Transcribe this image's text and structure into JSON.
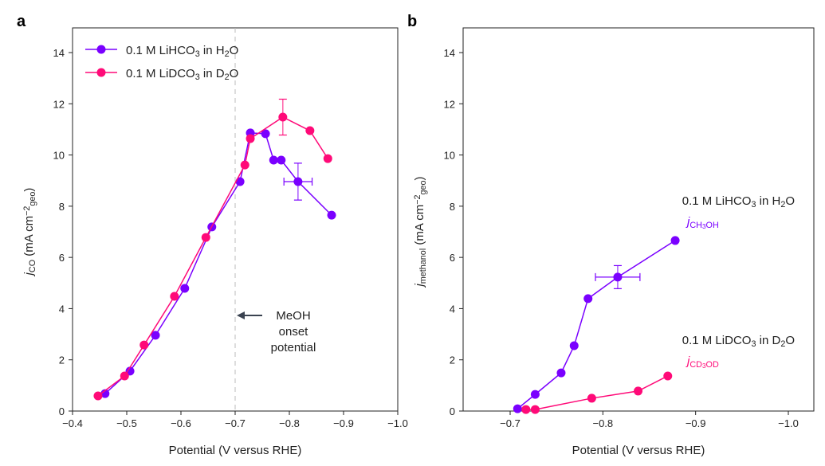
{
  "chart_data": [
    {
      "type": "line",
      "panel_label": "a",
      "xlabel": "Potential (V versus RHE)",
      "ylabel": [
        {
          "t": "j",
          "i": true
        },
        {
          "t": "CO",
          "sub": true
        },
        {
          "t": " (mA cm"
        },
        {
          "t": "−2",
          "sup": true
        },
        {
          "t": "geo",
          "sub": true
        },
        {
          "t": ")"
        }
      ],
      "xlim": [
        -0.4,
        -1.0
      ],
      "ylim": [
        0,
        15
      ],
      "xticks": [
        -0.4,
        -0.5,
        -0.6,
        -0.7,
        -0.8,
        -0.9,
        -1.0
      ],
      "xtick_labels": [
        "−0.4",
        "−0.5",
        "−0.6",
        "−0.7",
        "−0.8",
        "−0.9",
        "−1.0"
      ],
      "yticks": [
        0,
        2,
        4,
        6,
        8,
        10,
        12,
        14
      ],
      "ytick_labels": [
        "0",
        "2",
        "4",
        "6",
        "8",
        "10",
        "12",
        "14"
      ],
      "legend_placement": "top-left",
      "vline": -0.7,
      "annotation": [
        "MeOH",
        "onset",
        "potential"
      ],
      "series": [
        {
          "name": "0.1 M LiHCO3 in H2O",
          "color": "#7a00ff",
          "label": [
            {
              "t": "0.1 M LiHCO"
            },
            {
              "t": "3",
              "sub": true
            },
            {
              "t": " in H"
            },
            {
              "t": "2",
              "sub": true
            },
            {
              "t": "O"
            }
          ],
          "x": [
            -0.46,
            -0.506,
            -0.553,
            -0.607,
            -0.657,
            -0.709,
            -0.728,
            -0.756,
            -0.771,
            -0.785,
            -0.816,
            -0.878
          ],
          "y": [
            0.68,
            1.56,
            2.96,
            4.79,
            7.19,
            8.96,
            10.86,
            10.83,
            9.8,
            9.8,
            8.96,
            7.65
          ],
          "errors": [
            {
              "index": 10,
              "yerr": 0.72,
              "xerr": 0.026
            }
          ]
        },
        {
          "name": "0.1 M LiDCO3 in D2O",
          "color": "#ff0a78",
          "label": [
            {
              "t": "0.1 M LiDCO"
            },
            {
              "t": "3",
              "sub": true
            },
            {
              "t": " in D"
            },
            {
              "t": "2",
              "sub": true
            },
            {
              "t": "O"
            }
          ],
          "x": [
            -0.447,
            -0.496,
            -0.532,
            -0.588,
            -0.646,
            -0.718,
            -0.728,
            -0.788,
            -0.838,
            -0.871
          ],
          "y": [
            0.59,
            1.37,
            2.58,
            4.48,
            6.78,
            9.61,
            10.64,
            11.48,
            10.95,
            9.86
          ],
          "errors": [
            {
              "index": 7,
              "yerr": 0.7,
              "xerr": 0
            }
          ]
        }
      ]
    },
    {
      "type": "line",
      "panel_label": "b",
      "xlabel": "Potential (V versus RHE)",
      "ylabel": [
        {
          "t": "j",
          "i": true
        },
        {
          "t": "methanol",
          "sub": true
        },
        {
          "t": " (mA cm"
        },
        {
          "t": "−2",
          "sup": true
        },
        {
          "t": "geo",
          "sub": true
        },
        {
          "t": ")"
        }
      ],
      "xlim": [
        -0.6,
        -1.0
      ],
      "ylim": [
        0,
        15
      ],
      "xticks": [
        -0.7,
        -0.8,
        -0.9,
        -1.0
      ],
      "xtick_labels": [
        "−0.7",
        "−0.8",
        "−0.9",
        "−1.0"
      ],
      "yticks": [
        0,
        2,
        4,
        6,
        8,
        10,
        12,
        14
      ],
      "ytick_labels": [
        "0",
        "2",
        "4",
        "6",
        "8",
        "10",
        "12",
        "14"
      ],
      "series": [
        {
          "name": "0.1 M LiHCO3 in H2O",
          "color": "#7a00ff",
          "label": [
            {
              "t": "0.1 M LiHCO"
            },
            {
              "t": "3",
              "sub": true
            },
            {
              "t": " in H"
            },
            {
              "t": "2",
              "sub": true
            },
            {
              "t": "O"
            }
          ],
          "sublabel": [
            {
              "t": "j",
              "i": true
            },
            {
              "t": "CH",
              "sub": true
            },
            {
              "t": "3",
              "sub2": true
            },
            {
              "t": "OH",
              "sub": true
            }
          ],
          "x": [
            -0.708,
            -0.727,
            -0.755,
            -0.769,
            -0.784,
            -0.816,
            -0.878
          ],
          "y": [
            0.09,
            0.65,
            1.49,
            2.55,
            4.39,
            5.23,
            6.66
          ],
          "errors": [
            {
              "index": 5,
              "yerr": 0.45,
              "xerr": 0.024
            }
          ]
        },
        {
          "name": "0.1 M LiDCO3 in D2O",
          "color": "#ff0a78",
          "label": [
            {
              "t": "0.1 M LiDCO"
            },
            {
              "t": "3",
              "sub": true
            },
            {
              "t": " in D"
            },
            {
              "t": "2",
              "sub": true
            },
            {
              "t": "O"
            }
          ],
          "sublabel": [
            {
              "t": "j",
              "i": true
            },
            {
              "t": "CD",
              "sub": true
            },
            {
              "t": "3",
              "sub2": true
            },
            {
              "t": "OD",
              "sub": true
            }
          ],
          "x": [
            -0.717,
            -0.727,
            -0.788,
            -0.838,
            -0.87
          ],
          "y": [
            0.06,
            0.06,
            0.5,
            0.78,
            1.37
          ],
          "errors": []
        }
      ]
    }
  ]
}
